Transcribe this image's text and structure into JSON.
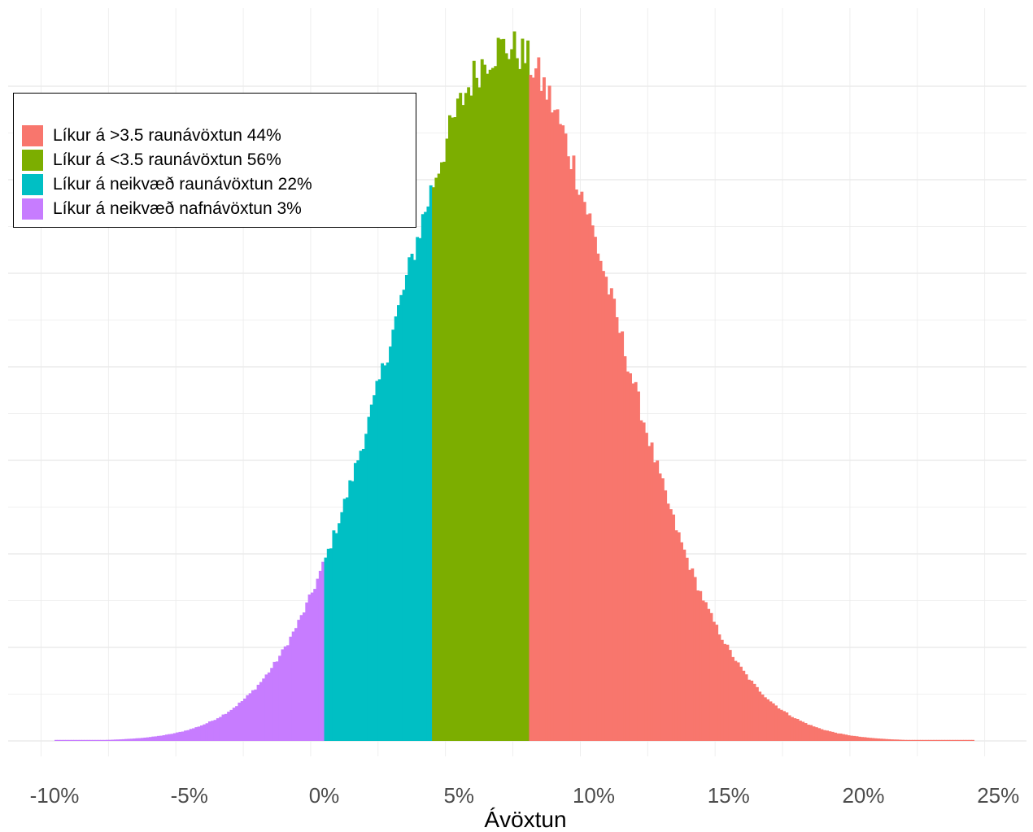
{
  "chart_data": {
    "type": "bar",
    "subtype": "histogram",
    "xlabel": "Ávöxtun",
    "ylabel": "",
    "xlim": [
      -10.5,
      25.5
    ],
    "x_ticks": [
      -10,
      -5,
      0,
      5,
      10,
      15,
      20,
      25
    ],
    "x_tick_labels": [
      "-10%",
      "-5%",
      "0%",
      "5%",
      "10%",
      "15%",
      "20%",
      "25%"
    ],
    "y_tick_labels": [],
    "grid": true,
    "legend_position": "top-left",
    "distribution": {
      "mean": 6.7,
      "sd": 4.1,
      "min": -10,
      "max": 24.1,
      "bin_width": 0.1
    },
    "series": [
      {
        "name": "Líkur á >3.5 raunávöxtun 44%",
        "color": "#F8766D",
        "x_range": [
          7.6,
          24.1
        ]
      },
      {
        "name": "Líkur á <3.5 raunávöxtun 56%",
        "color": "#7CAE00",
        "x_range": [
          4.0,
          7.6
        ]
      },
      {
        "name": "Líkur á neikvæð raunávöxtun 22%",
        "color": "#00BFC4",
        "x_range": [
          0.0,
          4.0
        ]
      },
      {
        "name": "Líkur á neikvæð nafnávöxtun 3%",
        "color": "#C77CFF",
        "x_range": [
          -10.0,
          0.0
        ]
      }
    ],
    "colors": {
      "grid": "#ebebeb",
      "tick_text": "#4d4d4d"
    }
  }
}
